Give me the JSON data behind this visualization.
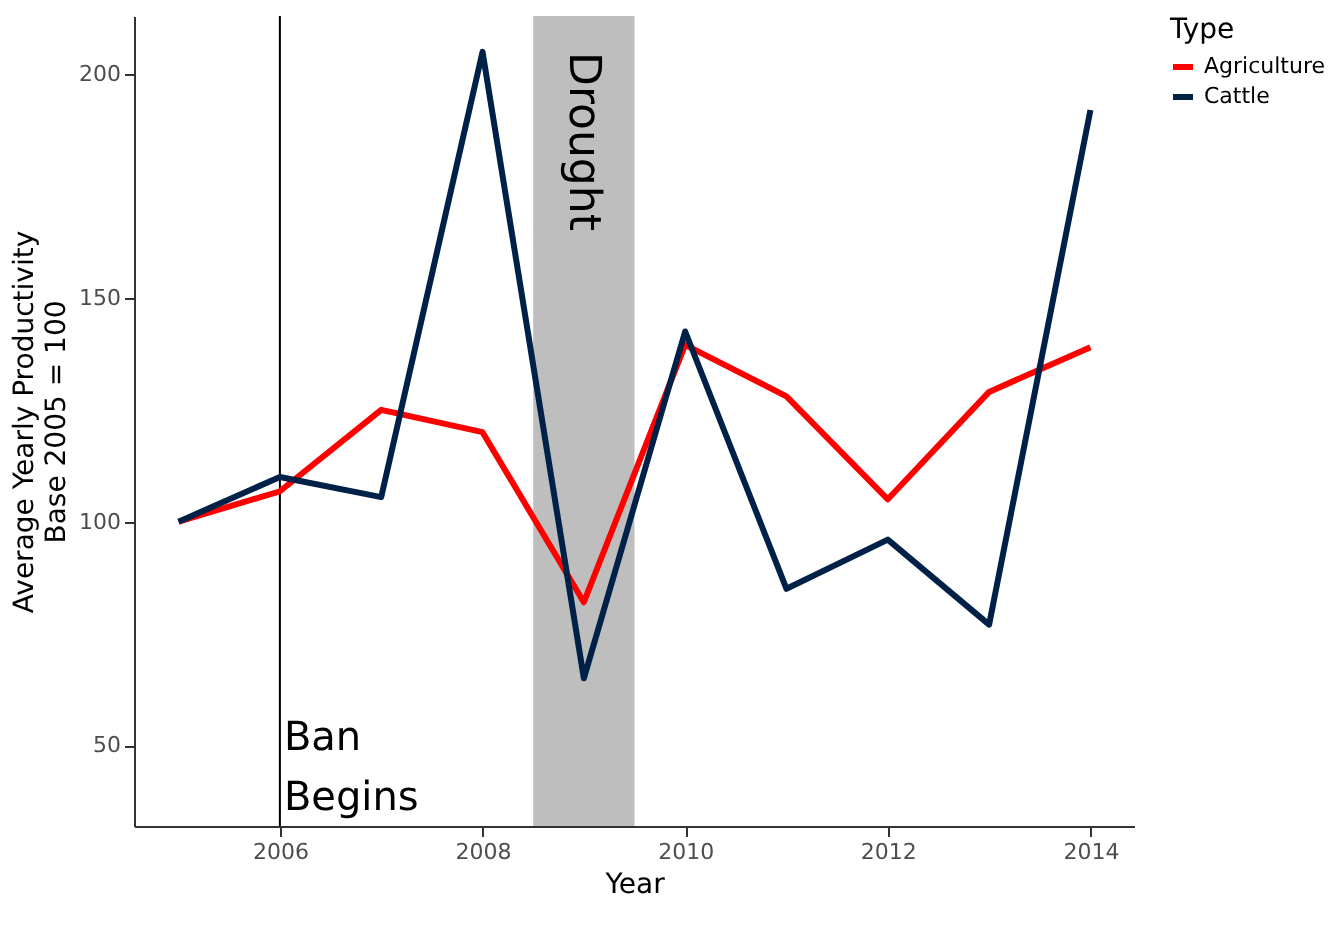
{
  "chart_data": {
    "type": "line",
    "xlabel": "Year",
    "ylabel": "Average Yearly Productivity\nBase 2005 = 100",
    "legend_title": "Type",
    "legend": "right",
    "grid": false,
    "x": [
      2005,
      2006,
      2007,
      2008,
      2009,
      2010,
      2011,
      2012,
      2013,
      2014
    ],
    "series": [
      {
        "name": "Agriculture",
        "color": "#ff0000",
        "values": [
          100,
          106.8,
          125,
          120,
          82,
          139.5,
          128,
          105,
          129,
          139
        ]
      },
      {
        "name": "Cattle",
        "color": "#002147",
        "values": [
          100,
          110,
          105.5,
          205,
          65,
          142.5,
          85,
          96,
          77,
          192
        ]
      }
    ],
    "xlim": [
      2004.56,
      2014.43
    ],
    "xticks": [
      2006,
      2008,
      2010,
      2012,
      2014
    ],
    "ylim": [
      32,
      213
    ],
    "yticks": [
      50,
      100,
      150,
      200
    ],
    "ref_lines": [
      {
        "axis": "x",
        "value": 2006,
        "label": "Ban\nBegins",
        "color": "#000000"
      }
    ],
    "bands": [
      {
        "axis": "x",
        "from": 2008.5,
        "to": 2009.5,
        "label": "Drought",
        "color": "#bebebe"
      }
    ]
  }
}
